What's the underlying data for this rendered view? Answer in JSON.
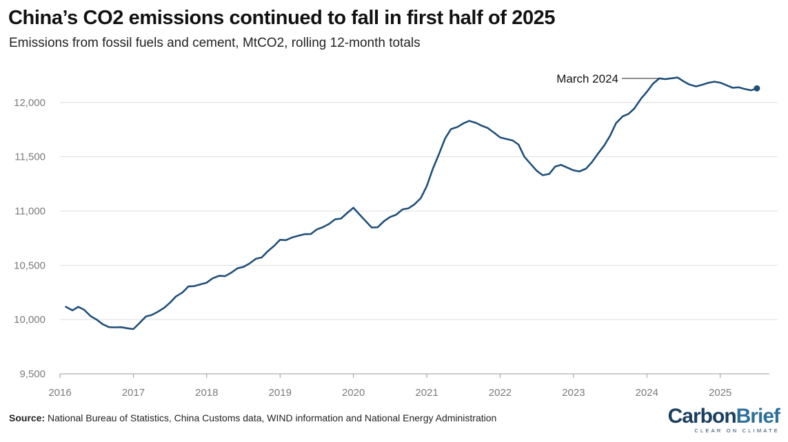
{
  "title": "China’s CO2 emissions continued to fall in first half of 2025",
  "subtitle": "Emissions from fossil fuels and cement, MtCO2, rolling 12-month totals",
  "source": {
    "label": "Source:",
    "text": "National Bureau of Statistics, China Customs data, WIND information and National Energy Administration"
  },
  "logo": {
    "carbon": "Carbon",
    "brief": "Brief",
    "tagline": "CLEAR ON CLIMATE"
  },
  "colors": {
    "line": "#1f4e79",
    "grid": "#dddddd",
    "axis_text": "#7a7a7a"
  },
  "chart_data": {
    "type": "line",
    "title": "China’s CO2 emissions continued to fall in first half of 2025",
    "ylabel": "",
    "xlabel": "",
    "ylim": [
      9500,
      12500
    ],
    "xlim": [
      2016,
      2025.67
    ],
    "y_ticks": [
      {
        "value": 9500,
        "label": "9,500"
      },
      {
        "value": 10000,
        "label": "10,000"
      },
      {
        "value": 10500,
        "label": "10,500"
      },
      {
        "value": 11000,
        "label": "11,000"
      },
      {
        "value": 11500,
        "label": "11,500"
      },
      {
        "value": 12000,
        "label": "12,000"
      }
    ],
    "x_ticks": [
      {
        "value": 2016,
        "label": "2016"
      },
      {
        "value": 2017,
        "label": "2017"
      },
      {
        "value": 2018,
        "label": "2018"
      },
      {
        "value": 2019,
        "label": "2019"
      },
      {
        "value": 2020,
        "label": "2020"
      },
      {
        "value": 2021,
        "label": "2021"
      },
      {
        "value": 2022,
        "label": "2022"
      },
      {
        "value": 2023,
        "label": "2023"
      },
      {
        "value": 2024,
        "label": "2024"
      },
      {
        "value": 2025,
        "label": "2025"
      }
    ],
    "grid": true,
    "annotation": {
      "label": "March 2024",
      "x": 2024.17,
      "y": 12222
    },
    "end_marker": {
      "x": 2025.5,
      "y": 12130
    },
    "series": [
      {
        "values": [
          [
            2016.08,
            10118
          ],
          [
            2016.17,
            10085
          ],
          [
            2016.25,
            10118
          ],
          [
            2016.33,
            10090
          ],
          [
            2016.42,
            10030
          ],
          [
            2016.5,
            10000
          ],
          [
            2016.58,
            9958
          ],
          [
            2016.67,
            9930
          ],
          [
            2016.75,
            9928
          ],
          [
            2016.83,
            9930
          ],
          [
            2016.92,
            9920
          ],
          [
            2017.0,
            9912
          ],
          [
            2017.08,
            9965
          ],
          [
            2017.17,
            10028
          ],
          [
            2017.25,
            10042
          ],
          [
            2017.33,
            10070
          ],
          [
            2017.42,
            10108
          ],
          [
            2017.5,
            10155
          ],
          [
            2017.58,
            10212
          ],
          [
            2017.67,
            10250
          ],
          [
            2017.75,
            10305
          ],
          [
            2017.83,
            10308
          ],
          [
            2017.92,
            10325
          ],
          [
            2018.0,
            10340
          ],
          [
            2018.08,
            10380
          ],
          [
            2018.17,
            10403
          ],
          [
            2018.25,
            10400
          ],
          [
            2018.33,
            10430
          ],
          [
            2018.42,
            10472
          ],
          [
            2018.5,
            10485
          ],
          [
            2018.58,
            10515
          ],
          [
            2018.67,
            10560
          ],
          [
            2018.75,
            10572
          ],
          [
            2018.83,
            10628
          ],
          [
            2018.92,
            10680
          ],
          [
            2019.0,
            10735
          ],
          [
            2019.08,
            10732
          ],
          [
            2019.17,
            10758
          ],
          [
            2019.25,
            10772
          ],
          [
            2019.33,
            10786
          ],
          [
            2019.42,
            10788
          ],
          [
            2019.5,
            10830
          ],
          [
            2019.58,
            10850
          ],
          [
            2019.67,
            10882
          ],
          [
            2019.75,
            10923
          ],
          [
            2019.83,
            10930
          ],
          [
            2019.92,
            10985
          ],
          [
            2020.0,
            11030
          ],
          [
            2020.08,
            10970
          ],
          [
            2020.17,
            10905
          ],
          [
            2020.25,
            10848
          ],
          [
            2020.33,
            10850
          ],
          [
            2020.42,
            10908
          ],
          [
            2020.5,
            10945
          ],
          [
            2020.58,
            10965
          ],
          [
            2020.67,
            11015
          ],
          [
            2020.75,
            11025
          ],
          [
            2020.83,
            11060
          ],
          [
            2020.92,
            11120
          ],
          [
            2021.0,
            11230
          ],
          [
            2021.08,
            11385
          ],
          [
            2021.17,
            11530
          ],
          [
            2021.25,
            11670
          ],
          [
            2021.33,
            11755
          ],
          [
            2021.42,
            11775
          ],
          [
            2021.5,
            11808
          ],
          [
            2021.58,
            11830
          ],
          [
            2021.67,
            11812
          ],
          [
            2021.75,
            11785
          ],
          [
            2021.83,
            11765
          ],
          [
            2021.92,
            11720
          ],
          [
            2022.0,
            11678
          ],
          [
            2022.08,
            11665
          ],
          [
            2022.17,
            11650
          ],
          [
            2022.25,
            11612
          ],
          [
            2022.33,
            11500
          ],
          [
            2022.42,
            11430
          ],
          [
            2022.5,
            11370
          ],
          [
            2022.58,
            11330
          ],
          [
            2022.67,
            11342
          ],
          [
            2022.75,
            11410
          ],
          [
            2022.83,
            11425
          ],
          [
            2022.92,
            11398
          ],
          [
            2023.0,
            11375
          ],
          [
            2023.08,
            11365
          ],
          [
            2023.17,
            11390
          ],
          [
            2023.25,
            11450
          ],
          [
            2023.33,
            11525
          ],
          [
            2023.42,
            11605
          ],
          [
            2023.5,
            11695
          ],
          [
            2023.58,
            11810
          ],
          [
            2023.67,
            11872
          ],
          [
            2023.75,
            11895
          ],
          [
            2023.83,
            11945
          ],
          [
            2023.92,
            12035
          ],
          [
            2024.0,
            12098
          ],
          [
            2024.08,
            12170
          ],
          [
            2024.17,
            12222
          ],
          [
            2024.25,
            12215
          ],
          [
            2024.33,
            12222
          ],
          [
            2024.42,
            12230
          ],
          [
            2024.5,
            12195
          ],
          [
            2024.58,
            12165
          ],
          [
            2024.67,
            12148
          ],
          [
            2024.75,
            12162
          ],
          [
            2024.83,
            12180
          ],
          [
            2024.92,
            12192
          ],
          [
            2025.0,
            12182
          ],
          [
            2025.08,
            12160
          ],
          [
            2025.17,
            12135
          ],
          [
            2025.25,
            12140
          ],
          [
            2025.33,
            12125
          ],
          [
            2025.42,
            12112
          ],
          [
            2025.5,
            12130
          ]
        ]
      }
    ]
  }
}
